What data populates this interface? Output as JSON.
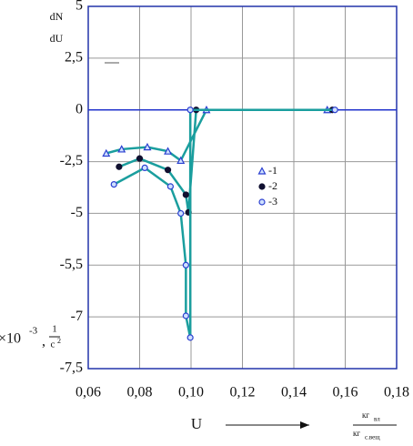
{
  "chart_data": {
    "type": "line",
    "y_label": {
      "numerator": "dN",
      "denominator": "dU"
    },
    "y_unit": {
      "base": "×10",
      "exponent": "-3",
      "separator": ",",
      "numerator": "1",
      "denominator": "c",
      "denominator_exponent": "2"
    },
    "x_label": "U",
    "x_unit": {
      "numerator": "кг",
      "numerator_sub": "вл",
      "denominator": "кг",
      "denominator_sub": "с.вещ"
    },
    "xlim": [
      0.06,
      0.18
    ],
    "xticks": [
      {
        "value": 0.06,
        "label": "0,06"
      },
      {
        "value": 0.08,
        "label": "0,08"
      },
      {
        "value": 0.1,
        "label": "0,10"
      },
      {
        "value": 0.12,
        "label": "0,12"
      },
      {
        "value": 0.14,
        "label": "0,14"
      },
      {
        "value": 0.16,
        "label": "0,16"
      },
      {
        "value": 0.18,
        "label": "0,18"
      }
    ],
    "ylim": [
      -7.5,
      5
    ],
    "yticks": [
      {
        "value": 5,
        "label": "5"
      },
      {
        "value": 2.5,
        "label": "2,5"
      },
      {
        "value": 0,
        "label": "0"
      },
      {
        "value": -2.5,
        "label": "-2,5"
      },
      {
        "value": -5,
        "label": "-5"
      },
      {
        "value": -5.5,
        "label": "-5,5"
      },
      {
        "value": -7,
        "label": "-7"
      },
      {
        "value": -7.5,
        "label": "-7,5"
      }
    ],
    "grid": true,
    "series": [
      {
        "name": "-1",
        "marker": "triangle",
        "color": "#1a9e9e",
        "marker_color": "#2a3fd0",
        "x": [
          0.067,
          0.073,
          0.083,
          0.091,
          0.096,
          0.106,
          0.153
        ],
        "values": [
          -2.1,
          -1.9,
          -1.8,
          -2.0,
          -2.45,
          0,
          0
        ]
      },
      {
        "name": "-2",
        "marker": "filled",
        "color": "#1a9e9e",
        "marker_color": "#101030",
        "x": [
          0.072,
          0.08,
          0.091,
          0.098,
          0.099,
          0.102,
          0.155
        ],
        "values": [
          -2.75,
          -2.35,
          -2.9,
          -4.1,
          -4.95,
          0,
          0
        ]
      },
      {
        "name": "-3",
        "marker": "open",
        "color": "#1a9e9e",
        "marker_color": "#2a3fd0",
        "x": [
          0.07,
          0.082,
          0.092,
          0.096,
          0.098,
          0.098,
          0.0997,
          0.0997,
          0.156
        ],
        "values": [
          -3.6,
          -2.8,
          -3.7,
          -5.0,
          -5.5,
          -6.97,
          -7.2,
          0,
          0
        ]
      }
    ]
  }
}
